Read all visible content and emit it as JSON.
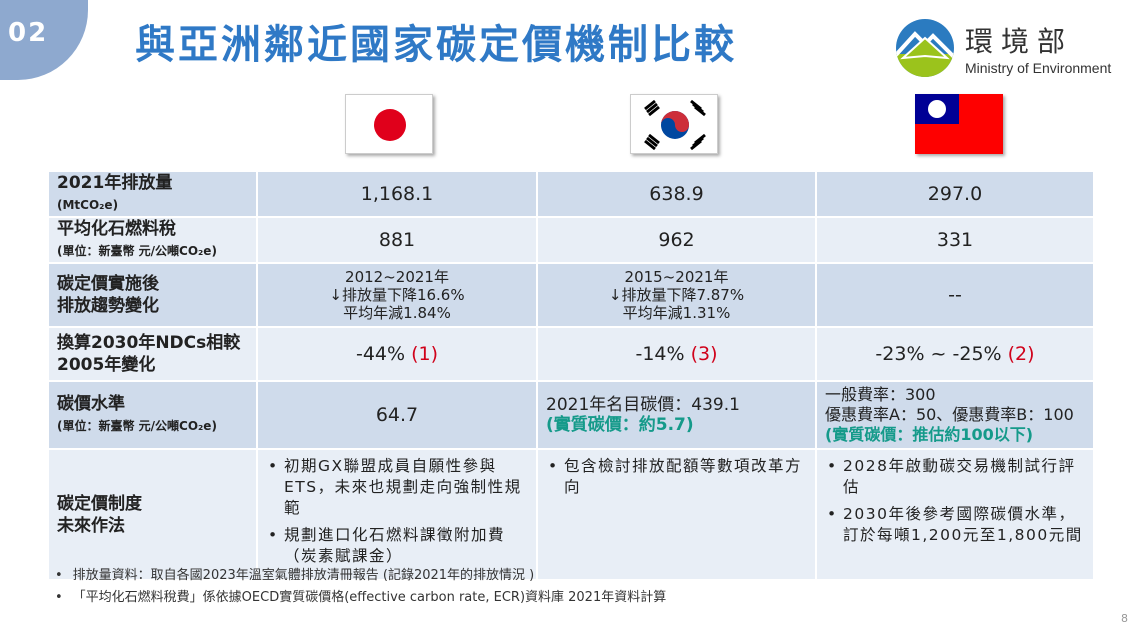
{
  "header": {
    "badge": "02",
    "title": "與亞洲鄰近國家碳定價機制比較",
    "logo_zh": "環境部",
    "logo_en": "Ministry of Environment"
  },
  "flags": [
    "japan-flag",
    "korea-flag",
    "taiwan-flag"
  ],
  "rows": [
    {
      "label": "2021年排放量",
      "sub": "(MtCO₂e)",
      "jp": "1,168.1",
      "kr": "638.9",
      "tw": "297.0"
    },
    {
      "label": "平均化石燃料稅",
      "sub": "(單位：新臺幣 元/公噸CO₂e)",
      "jp": "881",
      "kr": "962",
      "tw": "331"
    },
    {
      "label1": "碳定價實施後",
      "label2": "排放趨勢變化",
      "jp": [
        "2012~2021年",
        "↓排放量下降16.6%",
        "平均年減1.84%"
      ],
      "kr": [
        "2015~2021年",
        "↓排放量下降7.87%",
        "平均年減1.31%"
      ],
      "tw": "--"
    },
    {
      "label1": "換算2030年NDCs相較",
      "label2": "2005年變化",
      "jp": "-44%",
      "jp_ref": "(1)",
      "kr": "-14%",
      "kr_ref": "(3)",
      "tw": "-23% ~ -25%",
      "tw_ref": "(2)"
    },
    {
      "label": "碳價水準",
      "sub": "(單位：新臺幣 元/公噸CO₂e)",
      "jp": "64.7",
      "kr": [
        "2021年名目碳價：439.1",
        "(實質碳價：約5.7)"
      ],
      "tw": [
        "一般費率：300",
        "優惠費率A：50、優惠費率B：100",
        "(實質碳價：推估約100以下)"
      ]
    },
    {
      "label1": "碳定價制度",
      "label2": "未來作法",
      "jp": [
        "初期GX聯盟成員自願性參與ETS，未來也規劃走向強制性規範",
        "規劃進口化石燃料課徵附加費（炭素賦課金）"
      ],
      "kr": [
        "包含檢討排放配額等數項改革方向"
      ],
      "tw": [
        "2028年啟動碳交易機制試行評估",
        "2030年後參考國際碳價水準，訂於每噸1,200元至1,800元間"
      ]
    }
  ],
  "notes": [
    "排放量資料：取自各國2023年溫室氣體排放清冊報告 (記錄2021年的排放情況 )",
    "「平均化石燃料稅費」係依據OECD實質碳價格(effective carbon rate, ECR)資料庫 2021年資料計算"
  ],
  "page": "8"
}
